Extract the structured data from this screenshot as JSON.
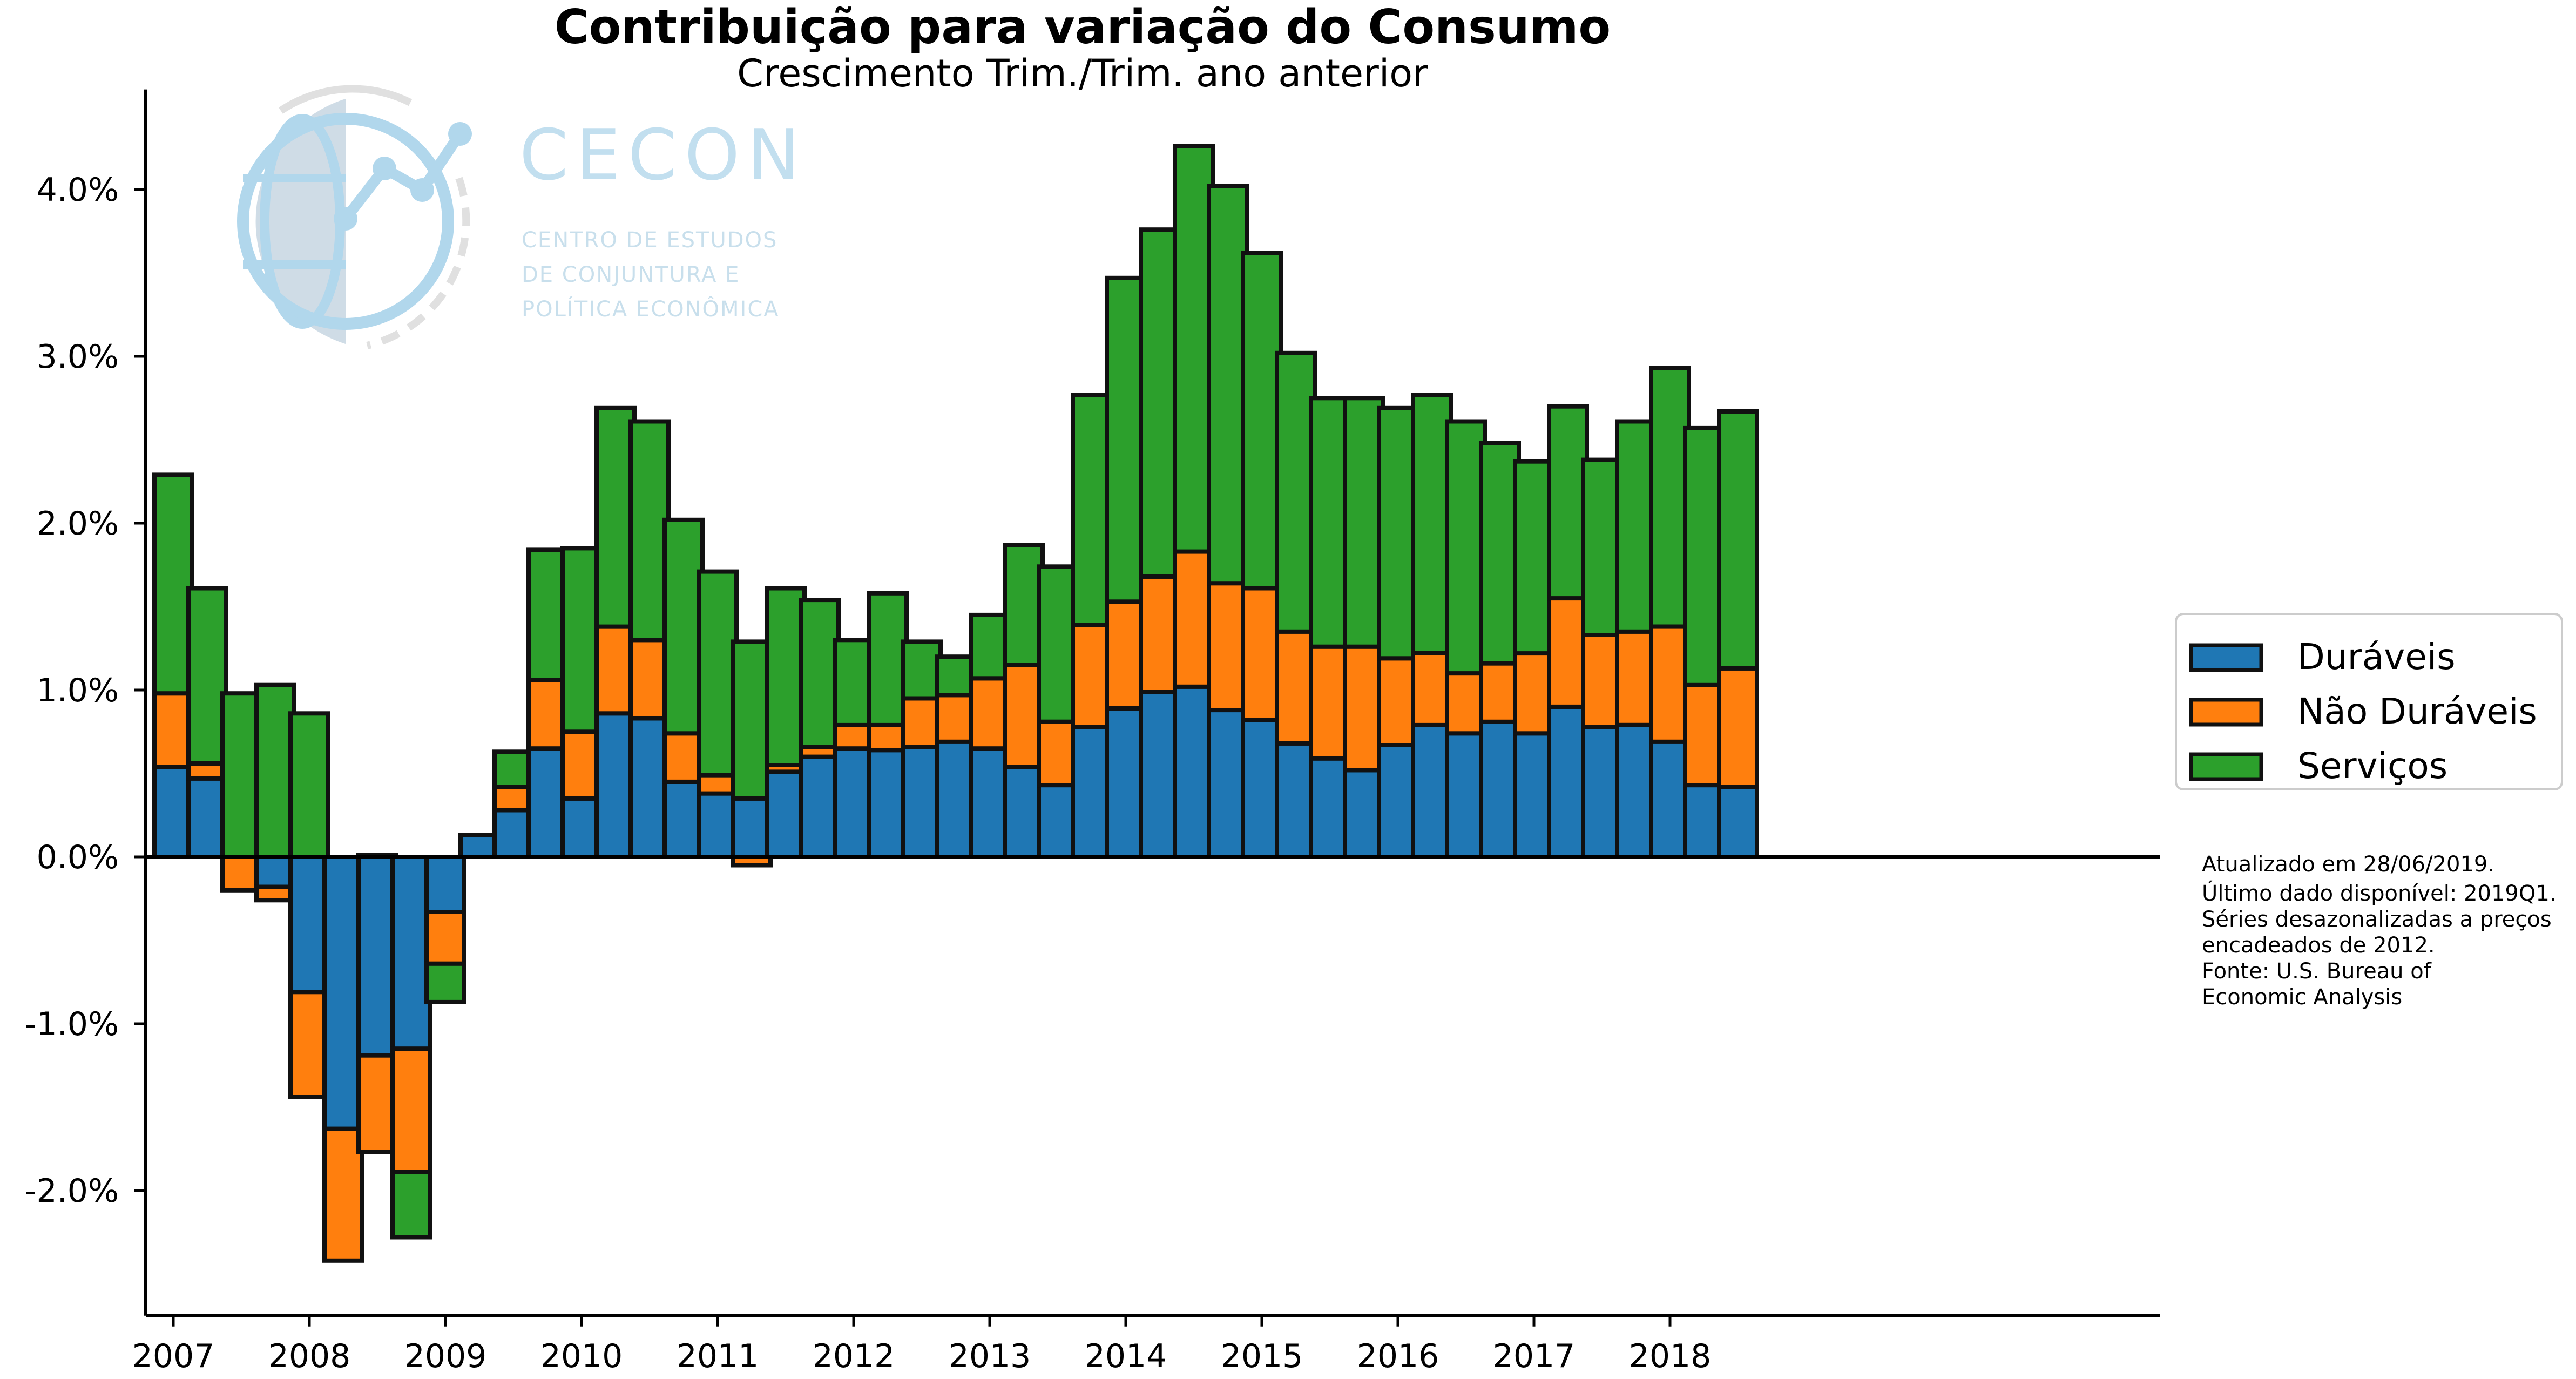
{
  "title": "Contribuição para variação do Consumo",
  "subtitle": "Crescimento Trim./Trim. ano anterior",
  "logo": {
    "name": "CECON",
    "line1": "CENTRO DE ESTUDOS",
    "line2": "DE CONJUNTURA E",
    "line3": "POLÍTICA ECONÔMICA"
  },
  "notes": [
    "Atualizado em 28/06/2019.",
    "Último dado disponível: 2019Q1.",
    "Séries desazonalizadas a preços",
    "encadeados de 2012.",
    "Fonte: U.S. Bureau of",
    "Economic Analysis"
  ],
  "colors": {
    "duraveis": "#1f77b4",
    "nao_duraveis": "#ff7f0e",
    "servicos": "#2ca02c"
  },
  "chart_data": {
    "type": "bar",
    "stacked": true,
    "title": "Contribuição para variação do Consumo",
    "subtitle": "Crescimento Trim./Trim. ano anterior",
    "xlabel": "",
    "ylabel": "",
    "ylim": [
      -2.75,
      4.6
    ],
    "y_ticks": [
      -2.0,
      -1.0,
      0.0,
      1.0,
      2.0,
      3.0,
      4.0
    ],
    "y_tick_labels": [
      "-2.0%",
      "-1.0%",
      "0.0%",
      "1.0%",
      "2.0%",
      "3.0%",
      "4.0%"
    ],
    "x_tick_labels": [
      "2007",
      "2008",
      "2009",
      "2010",
      "2011",
      "2012",
      "2013",
      "2014",
      "2015",
      "2016",
      "2017",
      "2018"
    ],
    "legend_position": "right",
    "grid": false,
    "categories": [
      "2007Q1",
      "2007Q2",
      "2007Q3",
      "2007Q4",
      "2008Q1",
      "2008Q2",
      "2008Q3",
      "2008Q4",
      "2009Q1",
      "2009Q2",
      "2009Q3",
      "2009Q4",
      "2010Q1",
      "2010Q2",
      "2010Q3",
      "2010Q4",
      "2011Q1",
      "2011Q2",
      "2011Q3",
      "2011Q4",
      "2012Q1",
      "2012Q2",
      "2012Q3",
      "2012Q4",
      "2013Q1",
      "2013Q2",
      "2013Q3",
      "2013Q4",
      "2014Q1",
      "2014Q2",
      "2014Q3",
      "2014Q4",
      "2015Q1",
      "2015Q2",
      "2015Q3",
      "2015Q4",
      "2016Q1",
      "2016Q2",
      "2016Q3",
      "2016Q4",
      "2017Q1",
      "2017Q2",
      "2017Q3",
      "2017Q4",
      "2018Q1",
      "2018Q2",
      "2018Q3",
      "2018Q4",
      "2019Q1"
    ],
    "series": [
      {
        "name": "Duráveis",
        "values": [
          0.54,
          0.47,
          0.0,
          -0.18,
          -0.81,
          -1.63,
          -1.19,
          -1.15,
          -0.33,
          0.13,
          0.28,
          0.65,
          0.35,
          0.86,
          0.83,
          0.45,
          0.38,
          0.35,
          0.51,
          0.6,
          0.65,
          0.64,
          0.66,
          0.69,
          0.65,
          0.54,
          0.43,
          0.78,
          0.89,
          0.99,
          1.02,
          0.88,
          0.82,
          0.68,
          0.59,
          0.52,
          0.67,
          0.79,
          0.74,
          0.81,
          0.74,
          0.9,
          0.78,
          0.79,
          0.69,
          0.43,
          0.42,
          0.0,
          0.0
        ]
      },
      {
        "name": "Não Duráveis",
        "values": [
          0.44,
          0.09,
          -0.2,
          -0.08,
          -0.63,
          -0.79,
          -0.58,
          -0.74,
          -0.31,
          0.0,
          0.14,
          0.41,
          0.4,
          0.52,
          0.47,
          0.29,
          0.11,
          -0.05,
          0.04,
          0.06,
          0.14,
          0.15,
          0.29,
          0.28,
          0.42,
          0.61,
          0.38,
          0.61,
          0.64,
          0.69,
          0.81,
          0.76,
          0.79,
          0.67,
          0.67,
          0.74,
          0.52,
          0.43,
          0.36,
          0.35,
          0.48,
          0.65,
          0.55,
          0.56,
          0.69,
          0.6,
          0.71,
          0.0,
          0.0
        ]
      },
      {
        "name": "Serviços",
        "values": [
          1.31,
          1.05,
          0.98,
          1.03,
          0.86,
          0.0,
          0.01,
          -0.39,
          -0.23,
          0.0,
          0.21,
          0.78,
          1.1,
          1.31,
          1.31,
          1.28,
          1.22,
          0.94,
          1.06,
          0.88,
          0.51,
          0.79,
          0.34,
          0.23,
          0.38,
          0.72,
          0.93,
          1.38,
          1.94,
          2.08,
          2.43,
          2.38,
          2.01,
          1.67,
          1.49,
          1.49,
          1.5,
          1.55,
          1.51,
          1.32,
          1.15,
          1.15,
          1.05,
          1.26,
          1.55,
          1.54,
          1.54,
          0.0,
          0.0
        ]
      }
    ]
  }
}
